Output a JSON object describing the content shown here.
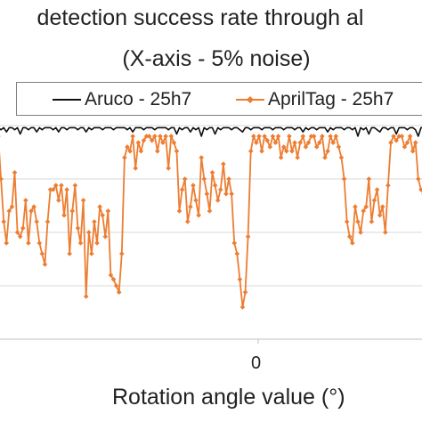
{
  "title": {
    "line1": "detection success rate through al",
    "line2": "(X-axis - 5% noise)"
  },
  "colors": {
    "aruco": "#111111",
    "apriltag": "#ED7D31",
    "grid": "#d9d9d9"
  },
  "chart_data": {
    "type": "line",
    "title": "detection success rate through al (X-axis - 5% noise)",
    "xlabel": "Rotation angle value (°)",
    "ylabel": "",
    "x_tick_labels": [
      "0"
    ],
    "ylim": [
      0,
      100
    ],
    "grid": true,
    "legend_position": "top",
    "series": [
      {
        "name": "Aruco - 25h7",
        "marker": "none",
        "values": [
          99,
          98,
          99,
          97,
          99,
          99,
          98,
          99,
          96,
          99,
          99,
          98,
          99,
          99,
          97,
          99,
          98,
          99,
          99,
          99,
          98,
          99,
          97,
          99,
          99,
          98,
          99,
          99,
          99,
          98,
          99,
          99,
          97,
          99,
          98,
          99,
          99,
          99,
          98,
          99,
          99,
          99,
          98,
          99,
          99,
          99,
          99,
          98,
          99,
          97,
          99,
          99,
          99,
          98,
          99,
          99,
          99,
          98,
          99,
          99,
          99,
          99,
          98,
          99,
          99,
          96,
          99,
          98,
          99,
          99,
          97,
          99,
          98,
          99,
          95,
          99,
          98,
          99,
          99,
          96,
          99,
          98,
          99,
          99,
          99,
          98,
          99,
          99,
          98,
          97,
          99,
          99,
          98,
          99,
          99,
          99,
          98,
          99,
          99,
          99,
          98,
          99,
          99,
          99,
          98,
          99,
          99,
          99,
          98,
          99,
          99,
          97,
          99,
          98,
          99,
          99,
          98,
          99,
          99,
          99,
          97,
          99,
          98,
          99,
          99,
          99,
          98,
          99,
          99,
          98,
          99,
          95,
          99,
          98,
          99,
          96,
          99,
          99,
          98,
          97,
          99,
          99,
          98,
          99,
          99,
          96,
          99,
          99,
          99,
          98,
          99,
          99,
          98,
          95,
          99,
          99
        ]
      },
      {
        "name": "AprilTag - 25h7",
        "marker": "diamond",
        "values": [
          95,
          75,
          55,
          45,
          60,
          62,
          78,
          50,
          48,
          52,
          65,
          45,
          60,
          62,
          55,
          45,
          40,
          35,
          55,
          70,
          70,
          72,
          65,
          72,
          58,
          70,
          40,
          60,
          72,
          52,
          45,
          65,
          20,
          50,
          40,
          55,
          45,
          62,
          58,
          48,
          60,
          30,
          28,
          25,
          22,
          40,
          85,
          90,
          88,
          95,
          80,
          92,
          88,
          93,
          95,
          95,
          93,
          95,
          88,
          95,
          92,
          95,
          80,
          95,
          92,
          88,
          60,
          70,
          75,
          55,
          62,
          72,
          65,
          58,
          85,
          75,
          68,
          60,
          78,
          72,
          65,
          70,
          82,
          68,
          75,
          68,
          45,
          40,
          28,
          15,
          22,
          48,
          88,
          95,
          92,
          95,
          88,
          95,
          93,
          90,
          95,
          92,
          95,
          85,
          90,
          88,
          95,
          88,
          92,
          85,
          92,
          95,
          90,
          92,
          95,
          95,
          90,
          92,
          95,
          85,
          88,
          95,
          92,
          95,
          90,
          85,
          75,
          55,
          48,
          45,
          62,
          55,
          50,
          60,
          62,
          75,
          55,
          65,
          70,
          58,
          62,
          50,
          72,
          92,
          95,
          93,
          95,
          95,
          90,
          92,
          95,
          88,
          92,
          75,
          70,
          68
        ]
      }
    ],
    "notes_visible_ticks": "0"
  }
}
